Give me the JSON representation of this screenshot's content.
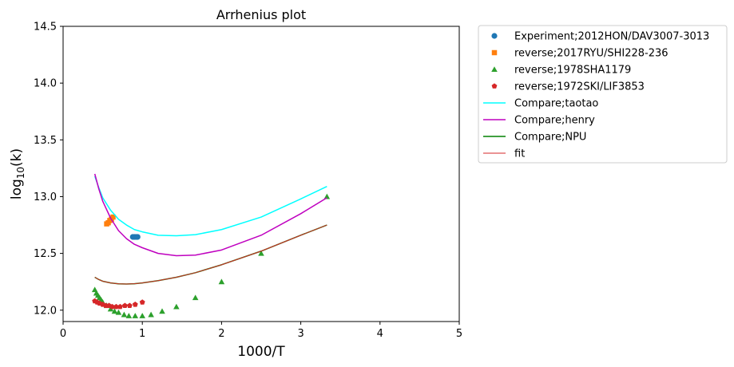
{
  "chart_data": {
    "type": "scatter",
    "title": "Arrhenius plot",
    "xlabel": "1000/T",
    "ylabel_base": "log",
    "ylabel_sub": "10",
    "ylabel_tail": "(k)",
    "xlim": [
      0,
      5
    ],
    "ylim": [
      11.9,
      14.5
    ],
    "x_ticks": [
      0,
      1,
      2,
      3,
      4,
      5
    ],
    "y_ticks": [
      12.0,
      12.5,
      13.0,
      13.5,
      14.0,
      14.5
    ],
    "grid": false,
    "legend_position": "outside-right-top",
    "series": [
      {
        "name": "Experiment;2012HON/DAV3007-3013",
        "kind": "marker",
        "marker": "circle",
        "color": "#1f77b4",
        "x": [
          0.88,
          0.9,
          0.92,
          0.94
        ],
        "y": [
          12.645,
          12.645,
          12.645,
          12.645
        ]
      },
      {
        "name": "reverse;2017RYU/SHI228-236",
        "kind": "marker",
        "marker": "square",
        "color": "#ff7f0e",
        "x": [
          0.55,
          0.57,
          0.59,
          0.61,
          0.63
        ],
        "y": [
          12.76,
          12.77,
          12.79,
          12.8,
          12.82
        ]
      },
      {
        "name": "reverse;1978SHA1179",
        "kind": "marker",
        "marker": "triangle",
        "color": "#2ca02c",
        "x": [
          0.4,
          0.42,
          0.44,
          0.46,
          0.48,
          0.5,
          0.55,
          0.6,
          0.65,
          0.7,
          0.77,
          0.83,
          0.91,
          1.0,
          1.11,
          1.25,
          1.43,
          1.67,
          2.0,
          2.5,
          3.33
        ],
        "y": [
          12.18,
          12.15,
          12.13,
          12.11,
          12.09,
          12.07,
          12.04,
          12.01,
          11.99,
          11.98,
          11.96,
          11.95,
          11.95,
          11.95,
          11.96,
          11.99,
          12.03,
          12.11,
          12.25,
          12.5,
          13.0
        ]
      },
      {
        "name": "reverse;1972SKI/LIF3853",
        "kind": "marker",
        "marker": "pentagon",
        "color": "#d62728",
        "x": [
          0.4,
          0.43,
          0.46,
          0.5,
          0.54,
          0.58,
          0.62,
          0.67,
          0.72,
          0.78,
          0.84,
          0.91,
          1.0
        ],
        "y": [
          12.08,
          12.07,
          12.06,
          12.05,
          12.04,
          12.04,
          12.03,
          12.03,
          12.03,
          12.04,
          12.04,
          12.05,
          12.07
        ]
      },
      {
        "name": "Compare;taotao",
        "kind": "line",
        "color": "#00ffff",
        "width": 1.5,
        "x": [
          0.4,
          0.45,
          0.5,
          0.6,
          0.7,
          0.8,
          0.9,
          1.0,
          1.2,
          1.43,
          1.67,
          2.0,
          2.5,
          3.0,
          3.33
        ],
        "y": [
          13.18,
          13.08,
          12.99,
          12.88,
          12.8,
          12.75,
          12.71,
          12.69,
          12.66,
          12.655,
          12.665,
          12.71,
          12.82,
          12.98,
          13.09
        ]
      },
      {
        "name": "Compare;henry",
        "kind": "line",
        "color": "#bf00bf",
        "width": 1.5,
        "x": [
          0.4,
          0.45,
          0.5,
          0.6,
          0.7,
          0.8,
          0.9,
          1.0,
          1.2,
          1.43,
          1.67,
          2.0,
          2.5,
          3.0,
          3.33
        ],
        "y": [
          13.2,
          13.07,
          12.96,
          12.81,
          12.7,
          12.63,
          12.58,
          12.55,
          12.5,
          12.48,
          12.485,
          12.53,
          12.66,
          12.85,
          12.99
        ]
      },
      {
        "name": "Compare;NPU",
        "kind": "line",
        "color": "#008000",
        "width": 1.5,
        "x": [
          0.4,
          0.45,
          0.5,
          0.6,
          0.7,
          0.8,
          0.9,
          1.0,
          1.2,
          1.43,
          1.67,
          2.0,
          2.5,
          3.0,
          3.33
        ],
        "y": [
          12.29,
          12.27,
          12.255,
          12.24,
          12.232,
          12.23,
          12.233,
          12.24,
          12.26,
          12.29,
          12.33,
          12.4,
          12.52,
          12.66,
          12.75
        ]
      },
      {
        "name": "fit",
        "kind": "line",
        "color": "#d62728",
        "width": 1,
        "x": [
          0.4,
          0.45,
          0.5,
          0.6,
          0.7,
          0.8,
          0.9,
          1.0,
          1.2,
          1.43,
          1.67,
          2.0,
          2.5,
          3.0,
          3.33
        ],
        "y": [
          12.29,
          12.27,
          12.255,
          12.24,
          12.232,
          12.23,
          12.233,
          12.24,
          12.26,
          12.29,
          12.33,
          12.4,
          12.52,
          12.66,
          12.75
        ]
      }
    ]
  }
}
